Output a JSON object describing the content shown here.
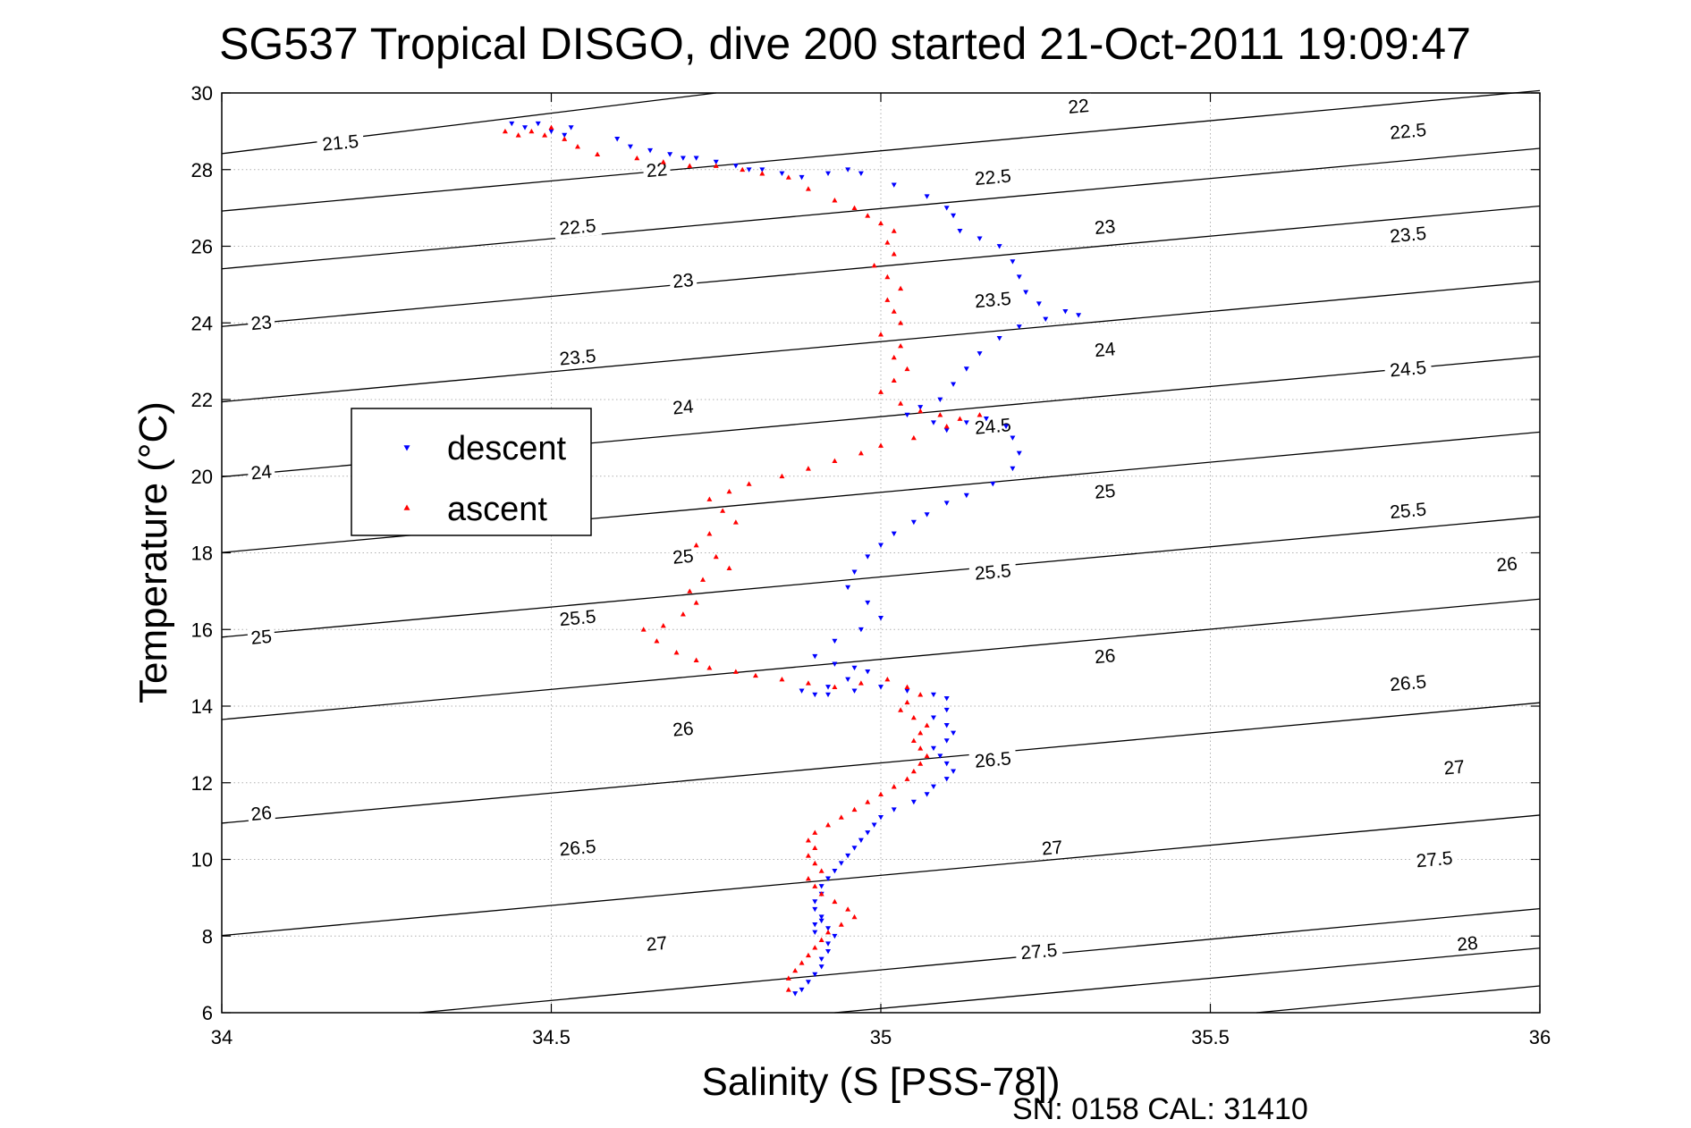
{
  "chart_data": {
    "type": "scatter",
    "title": "SG537 Tropical DISGO, dive 200 started 21-Oct-2011 19:09:47",
    "xlabel": "Salinity (S [PSS-78])",
    "ylabel": "Temperature (°C)",
    "xlim": [
      34,
      36
    ],
    "ylim": [
      6,
      30
    ],
    "x_ticks": [
      34,
      34.5,
      35,
      35.5,
      36
    ],
    "x_tick_labels": [
      "34",
      "34.5",
      "35",
      "35.5",
      "36"
    ],
    "y_ticks": [
      6,
      8,
      10,
      12,
      14,
      16,
      18,
      20,
      22,
      24,
      26,
      28,
      30
    ],
    "y_tick_labels": [
      "6",
      "8",
      "10",
      "12",
      "14",
      "16",
      "18",
      "20",
      "22",
      "24",
      "26",
      "28",
      "30"
    ],
    "grid": true,
    "legend_position": "upper-left",
    "footer": "SN: 0158  CAL: 31410",
    "series": [
      {
        "name": "descent",
        "color": "#0000ff",
        "marker": "triangle-down",
        "x": [
          34.44,
          34.46,
          34.48,
          34.5,
          34.52,
          34.53,
          34.6,
          34.62,
          34.65,
          34.68,
          34.7,
          34.72,
          34.75,
          34.78,
          34.8,
          34.82,
          34.85,
          34.88,
          34.92,
          34.95,
          34.97,
          35.02,
          35.07,
          35.1,
          35.11,
          35.12,
          35.15,
          35.18,
          35.2,
          35.21,
          35.22,
          35.24,
          35.28,
          35.3,
          35.25,
          35.21,
          35.18,
          35.15,
          35.13,
          35.11,
          35.09,
          35.06,
          35.04,
          35.08,
          35.1,
          35.13,
          35.16,
          35.19,
          35.2,
          35.21,
          35.2,
          35.17,
          35.13,
          35.1,
          35.07,
          35.05,
          35.02,
          35.0,
          34.98,
          34.96,
          34.95,
          34.98,
          35.0,
          34.97,
          34.93,
          34.9,
          34.93,
          34.96,
          34.98,
          34.95,
          34.92,
          34.88,
          34.9,
          34.92,
          34.96,
          35.0,
          35.04,
          35.08,
          35.1,
          35.1,
          35.08,
          35.1,
          35.11,
          35.1,
          35.08,
          35.09,
          35.1,
          35.11,
          35.1,
          35.08,
          35.07,
          35.05,
          35.02,
          35.0,
          34.99,
          34.98,
          34.97,
          34.96,
          34.95,
          34.94,
          34.93,
          34.92,
          34.91,
          34.91,
          34.9,
          34.9,
          34.91,
          34.9,
          34.9,
          34.91,
          34.92,
          34.93,
          34.92,
          34.92,
          34.91,
          34.91,
          34.9,
          34.89,
          34.88,
          34.87
        ],
        "y": [
          29.2,
          29.1,
          29.2,
          29.0,
          28.9,
          29.1,
          28.8,
          28.6,
          28.5,
          28.4,
          28.3,
          28.3,
          28.2,
          28.1,
          28.0,
          28.0,
          27.9,
          27.8,
          27.9,
          28.0,
          27.9,
          27.6,
          27.3,
          27.0,
          26.8,
          26.4,
          26.2,
          26.0,
          25.6,
          25.2,
          24.8,
          24.5,
          24.3,
          24.2,
          24.1,
          23.9,
          23.6,
          23.2,
          22.8,
          22.4,
          22.0,
          21.8,
          21.6,
          21.4,
          21.2,
          21.4,
          21.5,
          21.3,
          21.0,
          20.6,
          20.2,
          19.8,
          19.5,
          19.3,
          19.0,
          18.8,
          18.5,
          18.2,
          17.9,
          17.5,
          17.1,
          16.7,
          16.3,
          16.0,
          15.7,
          15.3,
          15.1,
          15.0,
          14.9,
          14.7,
          14.5,
          14.4,
          14.3,
          14.3,
          14.4,
          14.5,
          14.4,
          14.3,
          14.2,
          13.9,
          13.7,
          13.5,
          13.3,
          13.1,
          12.9,
          12.7,
          12.5,
          12.3,
          12.1,
          11.9,
          11.7,
          11.5,
          11.3,
          11.1,
          10.9,
          10.7,
          10.5,
          10.3,
          10.1,
          9.9,
          9.7,
          9.5,
          9.3,
          9.1,
          8.9,
          8.7,
          8.5,
          8.3,
          8.1,
          8.4,
          8.2,
          8.0,
          7.8,
          7.6,
          7.4,
          7.2,
          7.0,
          6.8,
          6.6,
          6.5
        ]
      },
      {
        "name": "ascent",
        "color": "#ff0000",
        "marker": "triangle-up",
        "x": [
          34.43,
          34.45,
          34.47,
          34.49,
          34.5,
          34.52,
          34.54,
          34.57,
          34.63,
          34.67,
          34.71,
          34.75,
          34.79,
          34.82,
          34.86,
          34.89,
          34.93,
          34.96,
          34.98,
          35.0,
          35.02,
          35.01,
          35.02,
          34.99,
          35.01,
          35.03,
          35.01,
          35.02,
          35.03,
          35.0,
          35.03,
          35.02,
          35.04,
          35.02,
          35.0,
          35.03,
          35.06,
          35.09,
          35.12,
          35.15,
          35.1,
          35.05,
          35.0,
          34.97,
          34.93,
          34.89,
          34.85,
          34.8,
          34.77,
          34.74,
          34.76,
          34.78,
          34.74,
          34.72,
          34.75,
          34.77,
          34.73,
          34.71,
          34.72,
          34.7,
          34.67,
          34.64,
          34.66,
          34.69,
          34.72,
          34.74,
          34.78,
          34.81,
          34.85,
          34.89,
          34.93,
          34.97,
          35.01,
          35.04,
          35.06,
          35.04,
          35.03,
          35.05,
          35.07,
          35.06,
          35.05,
          35.06,
          35.07,
          35.06,
          35.05,
          35.04,
          35.02,
          35.0,
          34.98,
          34.96,
          34.94,
          34.92,
          34.9,
          34.89,
          34.9,
          34.89,
          34.9,
          34.91,
          34.89,
          34.9,
          34.91,
          34.93,
          34.95,
          34.96,
          34.94,
          34.92,
          34.91,
          34.9,
          34.89,
          34.88,
          34.87,
          34.86,
          34.86
        ],
        "y": [
          29.0,
          28.9,
          29.0,
          28.9,
          29.1,
          28.8,
          28.6,
          28.4,
          28.3,
          28.2,
          28.1,
          28.1,
          28.0,
          27.9,
          27.8,
          27.5,
          27.2,
          27.0,
          26.8,
          26.6,
          26.4,
          26.1,
          25.8,
          25.5,
          25.2,
          24.9,
          24.6,
          24.3,
          24.0,
          23.7,
          23.4,
          23.1,
          22.8,
          22.5,
          22.2,
          21.9,
          21.7,
          21.6,
          21.5,
          21.6,
          21.3,
          21.0,
          20.8,
          20.6,
          20.4,
          20.2,
          20.0,
          19.8,
          19.6,
          19.4,
          19.1,
          18.8,
          18.5,
          18.2,
          17.9,
          17.6,
          17.3,
          17.0,
          16.7,
          16.4,
          16.1,
          16.0,
          15.7,
          15.4,
          15.2,
          15.0,
          14.9,
          14.8,
          14.7,
          14.6,
          14.5,
          14.6,
          14.7,
          14.5,
          14.3,
          14.1,
          13.9,
          13.7,
          13.5,
          13.3,
          13.1,
          12.9,
          12.7,
          12.5,
          12.3,
          12.1,
          11.9,
          11.7,
          11.5,
          11.3,
          11.1,
          10.9,
          10.7,
          10.5,
          10.3,
          10.1,
          9.9,
          9.7,
          9.5,
          9.3,
          9.1,
          8.9,
          8.7,
          8.5,
          8.3,
          8.1,
          7.9,
          7.7,
          7.5,
          7.3,
          7.1,
          6.9,
          6.6
        ]
      }
    ],
    "contour_lines": [
      {
        "level": 21.5,
        "x": [
          34,
          34.75
        ],
        "y": [
          28.416,
          30
        ]
      },
      {
        "level": 22,
        "x": [
          34,
          36
        ],
        "y": [
          26.919,
          30.062
        ]
      },
      {
        "level": 22.5,
        "x": [
          34,
          36
        ],
        "y": [
          25.411,
          28.554
        ]
      },
      {
        "level": 23,
        "x": [
          34,
          36
        ],
        "y": [
          23.907,
          27.05
        ]
      },
      {
        "level": 23.5,
        "x": [
          34,
          36
        ],
        "y": [
          21.94,
          25.083
        ]
      },
      {
        "level": 24,
        "x": [
          34,
          36
        ],
        "y": [
          19.983,
          23.126
        ]
      },
      {
        "level": 24.5,
        "x": [
          34,
          36
        ],
        "y": [
          18.008,
          21.151
        ]
      },
      {
        "level": 25,
        "x": [
          34,
          36
        ],
        "y": [
          15.8,
          18.943
        ]
      },
      {
        "level": 25.5,
        "x": [
          34,
          36
        ],
        "y": [
          13.65,
          16.793
        ]
      },
      {
        "level": 26,
        "x": [
          34,
          36
        ],
        "y": [
          10.946,
          14.089
        ]
      },
      {
        "level": 26.5,
        "x": [
          34,
          36
        ],
        "y": [
          8.013,
          11.156
        ]
      },
      {
        "level": 27,
        "x": [
          34.3,
          36
        ],
        "y": [
          6,
          8.715
        ]
      },
      {
        "level": 27.5,
        "x": [
          34.93,
          36
        ],
        "y": [
          6,
          7.686
        ]
      },
      {
        "level": 28,
        "x": [
          35.57,
          36
        ],
        "y": [
          6,
          6.7
        ]
      }
    ],
    "contour_labels": [
      {
        "text": "21.5",
        "x": 34.18,
        "y": 28.7
      },
      {
        "text": "22",
        "x": 34.66,
        "y": 27.99
      },
      {
        "text": "22",
        "x": 35.3,
        "y": 29.65
      },
      {
        "text": "22.5",
        "x": 34.54,
        "y": 26.5
      },
      {
        "text": "22.5",
        "x": 35.17,
        "y": 27.8
      },
      {
        "text": "22.5",
        "x": 35.8,
        "y": 29.0
      },
      {
        "text": "23",
        "x": 34.06,
        "y": 24.0
      },
      {
        "text": "23",
        "x": 34.7,
        "y": 25.1
      },
      {
        "text": "23",
        "x": 35.34,
        "y": 26.5
      },
      {
        "text": "23.5",
        "x": 34.54,
        "y": 23.1
      },
      {
        "text": "23.5",
        "x": 35.17,
        "y": 24.6
      },
      {
        "text": "23.5",
        "x": 35.8,
        "y": 26.3
      },
      {
        "text": "24",
        "x": 34.06,
        "y": 20.1
      },
      {
        "text": "24",
        "x": 34.7,
        "y": 21.8
      },
      {
        "text": "24",
        "x": 35.34,
        "y": 23.3
      },
      {
        "text": "24.5",
        "x": 35.17,
        "y": 21.3
      },
      {
        "text": "24.5",
        "x": 35.8,
        "y": 22.8
      },
      {
        "text": "25",
        "x": 34.06,
        "y": 15.8
      },
      {
        "text": "25",
        "x": 34.7,
        "y": 17.9
      },
      {
        "text": "25",
        "x": 35.34,
        "y": 19.6
      },
      {
        "text": "25.5",
        "x": 34.54,
        "y": 16.3
      },
      {
        "text": "25.5",
        "x": 35.17,
        "y": 17.5
      },
      {
        "text": "25.5",
        "x": 35.8,
        "y": 19.1
      },
      {
        "text": "26",
        "x": 34.06,
        "y": 11.2
      },
      {
        "text": "26",
        "x": 34.7,
        "y": 13.4
      },
      {
        "text": "26",
        "x": 35.34,
        "y": 15.3
      },
      {
        "text": "26",
        "x": 35.95,
        "y": 17.7
      },
      {
        "text": "26.5",
        "x": 34.54,
        "y": 10.3
      },
      {
        "text": "26.5",
        "x": 35.17,
        "y": 12.6
      },
      {
        "text": "26.5",
        "x": 35.8,
        "y": 14.6
      },
      {
        "text": "27",
        "x": 34.66,
        "y": 7.8
      },
      {
        "text": "27",
        "x": 35.26,
        "y": 10.3
      },
      {
        "text": "27",
        "x": 35.87,
        "y": 12.4
      },
      {
        "text": "27.5",
        "x": 35.24,
        "y": 7.6
      },
      {
        "text": "27.5",
        "x": 35.84,
        "y": 10.0
      },
      {
        "text": "28",
        "x": 35.89,
        "y": 7.8
      }
    ]
  }
}
